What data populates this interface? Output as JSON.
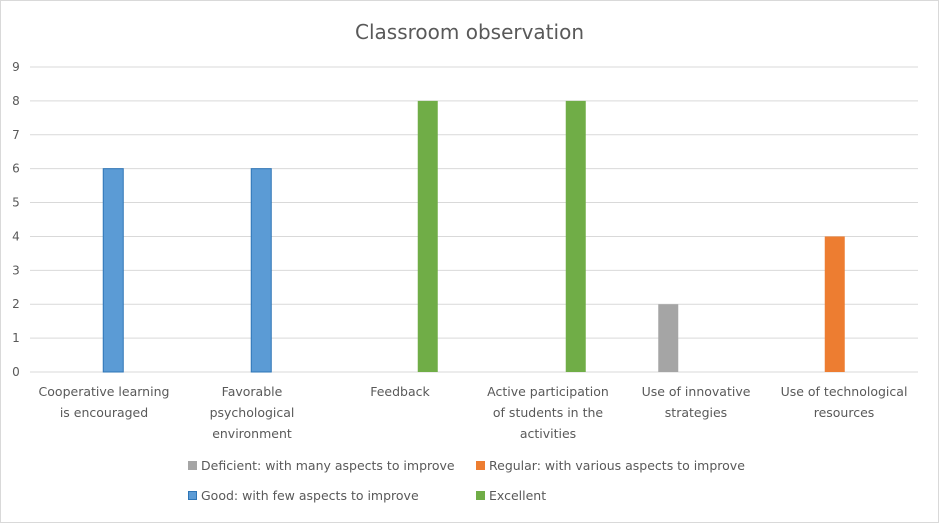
{
  "chart_data": {
    "type": "bar",
    "title": "Classroom observation",
    "categories": [
      "Cooperative learning is encouraged",
      "Favorable psychological environment",
      "Feedback",
      "Active participation of students in the activities",
      "Use of innovative strategies",
      "Use of technological resources"
    ],
    "series": [
      {
        "name": "Deficient: with many aspects to improve",
        "color": "#a5a5a5",
        "values": [
          null,
          null,
          null,
          null,
          2,
          null
        ]
      },
      {
        "name": "Regular: with various aspects to improve",
        "color": "#ed7d31",
        "values": [
          null,
          null,
          null,
          null,
          null,
          4
        ]
      },
      {
        "name": "Good: with few aspects to improve",
        "color": "#5b9bd5",
        "values": [
          6,
          6,
          null,
          null,
          null,
          null
        ]
      },
      {
        "name": "Excellent",
        "color": "#70ad47",
        "values": [
          null,
          null,
          8,
          8,
          null,
          null
        ]
      }
    ],
    "xlabel": "",
    "ylabel": "",
    "ylim": [
      0,
      9
    ],
    "yticks": [
      0,
      1,
      2,
      3,
      4,
      5,
      6,
      7,
      8,
      9
    ],
    "grid": true,
    "legend_position": "bottom"
  }
}
